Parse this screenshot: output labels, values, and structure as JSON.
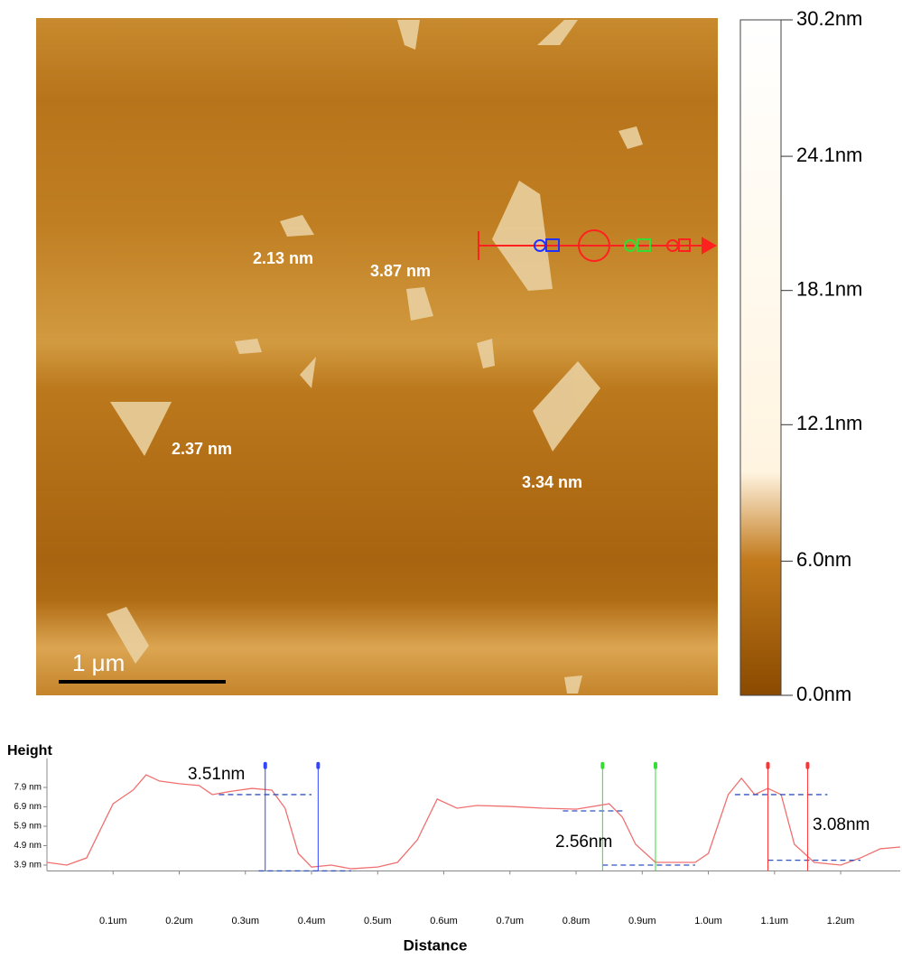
{
  "image": {
    "scale_bar": "1 μm",
    "annotations": [
      "2.13 nm",
      "3.87 nm",
      "2.37 nm",
      "3.34 nm"
    ]
  },
  "colorbar": {
    "lim": [
      0,
      30.2
    ],
    "ticks": [
      {
        "value": 0.0,
        "label": "0.0nm"
      },
      {
        "value": 6.0,
        "label": "6.0nm"
      },
      {
        "value": 12.1,
        "label": "12.1nm"
      },
      {
        "value": 18.1,
        "label": "18.1nm"
      },
      {
        "value": 24.1,
        "label": "24.1nm"
      },
      {
        "value": 30.2,
        "label": "30.2nm"
      }
    ]
  },
  "chart_data": {
    "type": "line",
    "y_label": "Height",
    "x_label": "Distance",
    "x": [
      0.0,
      0.03,
      0.06,
      0.08,
      0.1,
      0.13,
      0.15,
      0.17,
      0.2,
      0.23,
      0.25,
      0.28,
      0.31,
      0.34,
      0.36,
      0.38,
      0.4,
      0.43,
      0.46,
      0.5,
      0.53,
      0.56,
      0.59,
      0.62,
      0.65,
      0.7,
      0.75,
      0.8,
      0.85,
      0.87,
      0.89,
      0.92,
      0.95,
      0.98,
      1.0,
      1.03,
      1.05,
      1.07,
      1.09,
      1.11,
      1.13,
      1.16,
      1.2,
      1.23,
      1.26,
      1.29
    ],
    "series": [
      {
        "color": "#f07070",
        "values": [
          4.04,
          3.9,
          4.27,
          5.67,
          7.06,
          7.76,
          8.55,
          8.23,
          8.09,
          8.0,
          7.53,
          7.71,
          7.85,
          7.76,
          6.83,
          4.5,
          3.8,
          3.9,
          3.71,
          3.8,
          4.04,
          5.2,
          7.3,
          6.83,
          6.97,
          6.92,
          6.83,
          6.78,
          7.06,
          6.37,
          4.97,
          4.04,
          4.04,
          4.04,
          4.5,
          7.53,
          8.37,
          7.53,
          7.85,
          7.53,
          4.97,
          4.04,
          3.9,
          4.27,
          4.74,
          4.83
        ]
      }
    ],
    "xlim": [
      0,
      1.29
    ],
    "ylim": [
      3.6,
      9.4
    ],
    "xticks": [
      {
        "value": 0.1,
        "label": "0.1um"
      },
      {
        "value": 0.2,
        "label": "0.2um"
      },
      {
        "value": 0.3,
        "label": "0.3um"
      },
      {
        "value": 0.4,
        "label": "0.4um"
      },
      {
        "value": 0.5,
        "label": "0.5um"
      },
      {
        "value": 0.6,
        "label": "0.6um"
      },
      {
        "value": 0.7,
        "label": "0.7um"
      },
      {
        "value": 0.8,
        "label": "0.8um"
      },
      {
        "value": 0.9,
        "label": "0.9um"
      },
      {
        "value": 1.0,
        "label": "1.0um"
      },
      {
        "value": 1.1,
        "label": "1.1um"
      },
      {
        "value": 1.2,
        "label": "1.2um"
      }
    ],
    "yticks": [
      {
        "value": 3.9,
        "label": "3.9 nm"
      },
      {
        "value": 4.9,
        "label": "4.9 nm"
      },
      {
        "value": 5.9,
        "label": "5.9 nm"
      },
      {
        "value": 6.9,
        "label": "6.9 nm"
      },
      {
        "value": 7.9,
        "label": "7.9 nm"
      }
    ],
    "cursors": [
      {
        "color": "#3344ff",
        "x": [
          0.33,
          0.41
        ]
      },
      {
        "color": "#33dd33",
        "x": [
          0.84,
          0.92
        ]
      },
      {
        "color": "#ff3333",
        "x": [
          1.09,
          1.15
        ]
      }
    ],
    "levels": [
      {
        "x": [
          0.26,
          0.4
        ],
        "y": 7.53
      },
      {
        "x": [
          0.32,
          0.46
        ],
        "y": 3.6
      },
      {
        "x": [
          0.78,
          0.87
        ],
        "y": 6.69
      },
      {
        "x": [
          0.84,
          0.98
        ],
        "y": 3.9
      },
      {
        "x": [
          1.04,
          1.18
        ],
        "y": 7.53
      },
      {
        "x": [
          1.09,
          1.23
        ],
        "y": 4.15
      }
    ],
    "annotations": [
      "3.51nm",
      "2.56nm",
      "3.08nm"
    ]
  }
}
